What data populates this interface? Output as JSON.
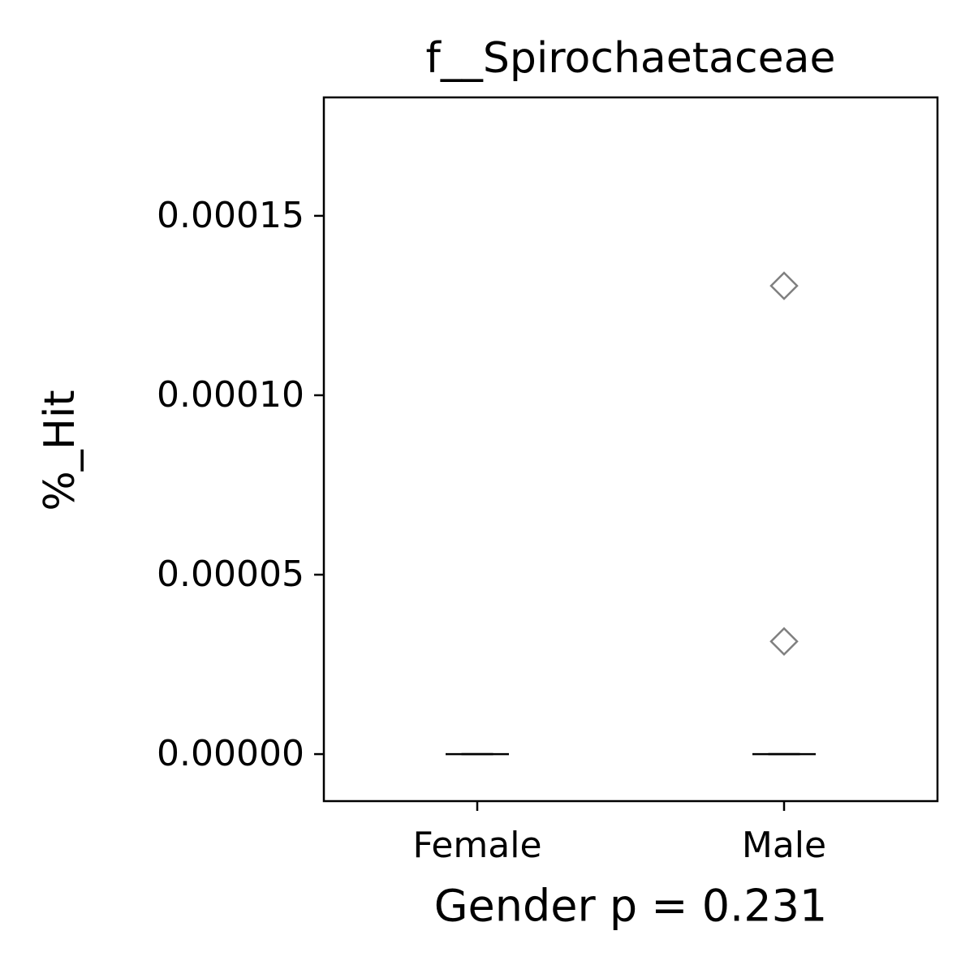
{
  "chart_data": {
    "type": "box",
    "title": "f__Spirochaetaceae",
    "x_label": "Gender p = 0.231",
    "y_label": "%_Hit",
    "categories": [
      "Female",
      "Male"
    ],
    "boxes": [
      {
        "whisker_low": 0,
        "q1": 0,
        "median": 0,
        "q3": 0,
        "whisker_high": 0,
        "outliers": []
      },
      {
        "whisker_low": 0,
        "q1": 0,
        "median": 0,
        "q3": 0,
        "whisker_high": 0,
        "outliers": [
          0.0001305,
          3.14e-05
        ]
      }
    ],
    "box_color": "#000000",
    "outlier_color": "#808080",
    "ylim": [
      -1.31e-05,
      0.000183
    ],
    "yticks": [
      {
        "value": 0,
        "label": "0.00000"
      },
      5e-05,
      {
        "value": 0.0001,
        "label": "0.00010"
      },
      0.00015
    ]
  }
}
